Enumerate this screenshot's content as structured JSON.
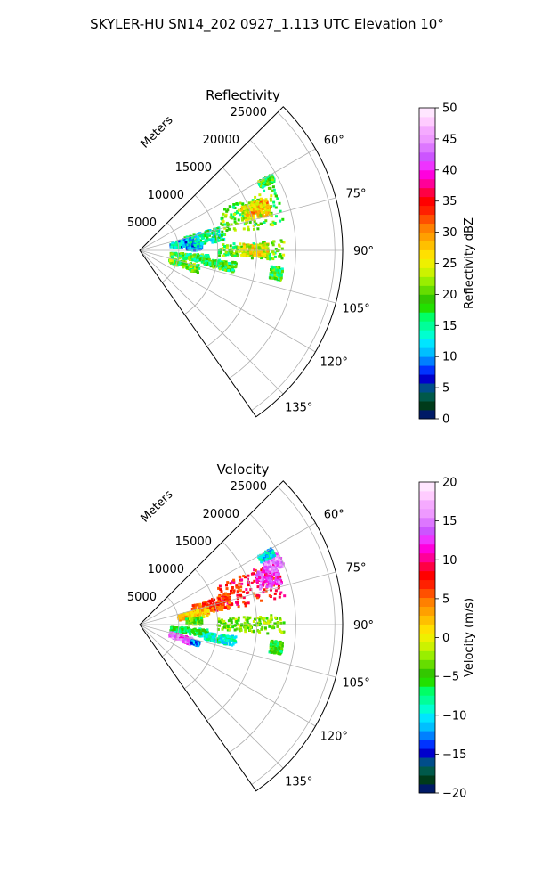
{
  "figure": {
    "title": "SKYLER-HU  SN14_202  0927_1.113 UTC Elevation 10°"
  },
  "chart_data": [
    {
      "type": "heatmap",
      "projection": "polar-sector",
      "title": "Reflectivity",
      "radial_label": "Meters",
      "range_ticks": [
        5000,
        10000,
        15000,
        20000,
        25000
      ],
      "range_tick_labels": [
        "5000",
        "10000",
        "15000",
        "20000",
        "25000"
      ],
      "rmax": 26000,
      "azimuth_range_deg": [
        45,
        145
      ],
      "azimuth_ticks_deg": [
        60,
        75,
        90,
        105,
        120,
        135
      ],
      "azimuth_tick_labels": [
        "60°",
        "75°",
        "90°",
        "105°",
        "120°",
        "135°"
      ],
      "grid": true,
      "colorbar": {
        "label": "Reflectivity dBZ",
        "vmin": 0,
        "vmax": 50,
        "ticks": [
          0,
          5,
          10,
          15,
          20,
          25,
          30,
          35,
          40,
          45,
          50
        ],
        "tick_labels": [
          "0",
          "5",
          "10",
          "15",
          "20",
          "25",
          "30",
          "35",
          "40",
          "45",
          "50"
        ],
        "colors": [
          "#001a66",
          "#003b1a",
          "#00594a",
          "#004d8a",
          "#0000cc",
          "#0033ff",
          "#0080ff",
          "#00bfff",
          "#00e5ff",
          "#00ffd0",
          "#00ff99",
          "#00ff66",
          "#22e000",
          "#33c800",
          "#66dd00",
          "#99ee00",
          "#ccf200",
          "#eef000",
          "#ffe000",
          "#ffc000",
          "#ffa000",
          "#ff8000",
          "#ff5000",
          "#ff2000",
          "#ff0000",
          "#ff0044",
          "#ff0099",
          "#ff00dd",
          "#ee33ff",
          "#cc55ff",
          "#dd77ff",
          "#ee99ff",
          "#f5aaff",
          "#ffccff",
          "#ffe6ff"
        ]
      },
      "echo_regions": [
        {
          "az": [
            64,
            80
          ],
          "r": [
            11000,
            19000
          ],
          "value": 20
        },
        {
          "az": [
            67,
            75
          ],
          "r": [
            14000,
            17500
          ],
          "value": 25
        },
        {
          "az": [
            68,
            72
          ],
          "r": [
            15000,
            17500
          ],
          "value": 27
        },
        {
          "az": [
            74,
            84
          ],
          "r": [
            6000,
            11000
          ],
          "value": 15
        },
        {
          "az": [
            76,
            86
          ],
          "r": [
            4000,
            7000
          ],
          "value": 12
        },
        {
          "az": [
            83,
            90
          ],
          "r": [
            6000,
            8000
          ],
          "value": 12
        },
        {
          "az": [
            86,
            94
          ],
          "r": [
            10000,
            18500
          ],
          "value": 20
        },
        {
          "az": [
            87,
            93
          ],
          "r": [
            13000,
            16500
          ],
          "value": 25
        },
        {
          "az": [
            94,
            101
          ],
          "r": [
            4000,
            9000
          ],
          "value": 18
        },
        {
          "az": [
            97,
            103
          ],
          "r": [
            8500,
            12500
          ],
          "value": 18
        },
        {
          "az": [
            104,
            112
          ],
          "r": [
            4000,
            8000
          ],
          "value": 20
        },
        {
          "az": [
            97,
            102
          ],
          "r": [
            17000,
            18500
          ],
          "value": 18
        },
        {
          "az": [
            60,
            63
          ],
          "r": [
            17500,
            19500
          ],
          "value": 18
        }
      ]
    },
    {
      "type": "heatmap",
      "projection": "polar-sector",
      "title": "Velocity",
      "radial_label": "Meters",
      "range_ticks": [
        5000,
        10000,
        15000,
        20000,
        25000
      ],
      "range_tick_labels": [
        "5000",
        "10000",
        "15000",
        "20000",
        "25000"
      ],
      "rmax": 26000,
      "azimuth_range_deg": [
        45,
        145
      ],
      "azimuth_ticks_deg": [
        60,
        75,
        90,
        105,
        120,
        135
      ],
      "azimuth_tick_labels": [
        "60°",
        "75°",
        "90°",
        "105°",
        "120°",
        "135°"
      ],
      "grid": true,
      "colorbar": {
        "label": "Velocity (m/s)",
        "vmin": -20,
        "vmax": 20,
        "ticks": [
          -20,
          -15,
          -10,
          -5,
          0,
          5,
          10,
          15,
          20
        ],
        "tick_labels": [
          "−20",
          "−15",
          "−10",
          "−5",
          "0",
          "5",
          "10",
          "15",
          "20"
        ],
        "colors": [
          "#001a66",
          "#003b1a",
          "#00594a",
          "#004d8a",
          "#0000cc",
          "#0033ff",
          "#0080ff",
          "#00bfff",
          "#00e5ff",
          "#00ffd0",
          "#00ff99",
          "#00ff66",
          "#22e000",
          "#33c800",
          "#66dd00",
          "#99ee00",
          "#ccf200",
          "#eef000",
          "#ffe000",
          "#ffc000",
          "#ffa000",
          "#ff8000",
          "#ff5000",
          "#ff2000",
          "#ff0000",
          "#ff0044",
          "#ff0099",
          "#ff00dd",
          "#ee33ff",
          "#cc55ff",
          "#dd77ff",
          "#ee99ff",
          "#f5aaff",
          "#ffccff",
          "#ffe6ff"
        ]
      },
      "echo_regions": [
        {
          "az": [
            64,
            80
          ],
          "r": [
            11000,
            19000
          ],
          "value": 8
        },
        {
          "az": [
            66,
            74
          ],
          "r": [
            16000,
            19000
          ],
          "value": 13
        },
        {
          "az": [
            62,
            68
          ],
          "r": [
            17500,
            20000
          ],
          "value": 15
        },
        {
          "az": [
            70,
            80
          ],
          "r": [
            7000,
            12000
          ],
          "value": 6
        },
        {
          "az": [
            76,
            84
          ],
          "r": [
            5000,
            9000
          ],
          "value": 2
        },
        {
          "az": [
            83,
            90
          ],
          "r": [
            6000,
            8000
          ],
          "value": -4
        },
        {
          "az": [
            86,
            94
          ],
          "r": [
            10000,
            18500
          ],
          "value": -3
        },
        {
          "az": [
            94,
            101
          ],
          "r": [
            4000,
            9000
          ],
          "value": -7
        },
        {
          "az": [
            97,
            103
          ],
          "r": [
            8500,
            12500
          ],
          "value": -9
        },
        {
          "az": [
            104,
            112
          ],
          "r": [
            4000,
            7000
          ],
          "value": 14
        },
        {
          "az": [
            106,
            110
          ],
          "r": [
            7000,
            8000
          ],
          "value": -13
        },
        {
          "az": [
            97,
            102
          ],
          "r": [
            17000,
            18500
          ],
          "value": -5
        },
        {
          "az": [
            60,
            63
          ],
          "r": [
            17500,
            19500
          ],
          "value": -10
        }
      ]
    }
  ]
}
